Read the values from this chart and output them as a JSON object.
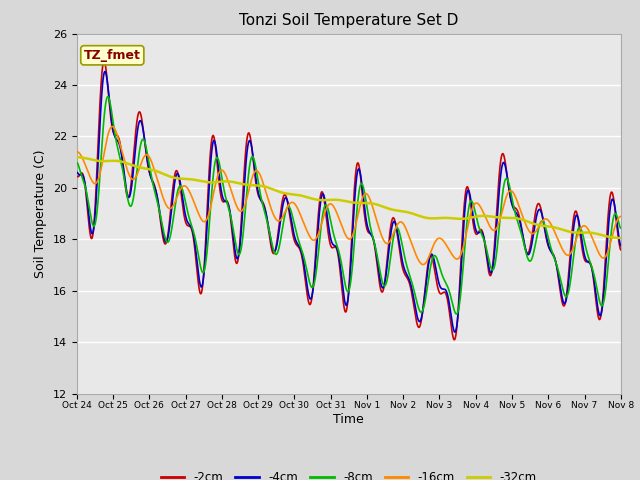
{
  "title": "Tonzi Soil Temperature Set D",
  "xlabel": "Time",
  "ylabel": "Soil Temperature (C)",
  "ylim": [
    12,
    26
  ],
  "xlim": [
    0,
    360
  ],
  "background_color": "#d8d8d8",
  "plot_bg_color": "#e8e8e8",
  "grid_color": "white",
  "annotation_text": "TZ_fmet",
  "annotation_bg": "#ffffcc",
  "annotation_border": "#999900",
  "series": {
    "-2cm": {
      "color": "#cc0000",
      "lw": 1.2
    },
    "-4cm": {
      "color": "#0000cc",
      "lw": 1.2
    },
    "-8cm": {
      "color": "#00bb00",
      "lw": 1.2
    },
    "-16cm": {
      "color": "#ff8800",
      "lw": 1.2
    },
    "-32cm": {
      "color": "#cccc00",
      "lw": 1.8
    }
  },
  "xtick_labels": [
    "Oct 24",
    "Oct 25",
    "Oct 26",
    "Oct 27",
    "Oct 28",
    "Oct 29",
    "Oct 30",
    "Oct 31",
    "Nov 1",
    "Nov 2",
    "Nov 3",
    "Nov 4",
    "Nov 5",
    "Nov 6",
    "Nov 7",
    "Nov 8"
  ],
  "xtick_positions": [
    0,
    24,
    48,
    72,
    96,
    120,
    144,
    168,
    192,
    216,
    240,
    264,
    288,
    312,
    336,
    360
  ]
}
